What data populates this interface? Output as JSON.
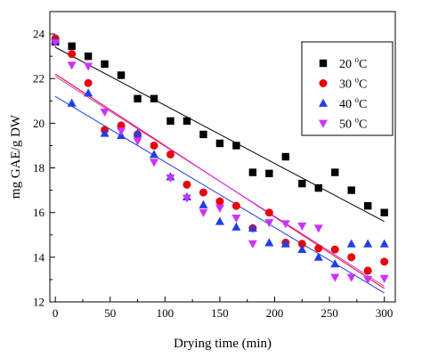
{
  "chart_data": {
    "type": "scatter",
    "xlabel": "Drying time (min)",
    "ylabel": "mg GAE/g DW",
    "xlim": [
      -5,
      310
    ],
    "ylim": [
      12,
      25
    ],
    "xticks": [
      0,
      50,
      100,
      150,
      200,
      250,
      300
    ],
    "yticks": [
      12,
      14,
      16,
      18,
      20,
      22,
      24
    ],
    "grid": false,
    "legend_position": "top-right",
    "series": [
      {
        "name": "20 °C",
        "label_value": "20 ",
        "label_unit": "o",
        "label_suffix": "C",
        "color": "#000000",
        "marker": "square",
        "points": [
          [
            0,
            23.65
          ],
          [
            15,
            23.45
          ],
          [
            30,
            23.0
          ],
          [
            45,
            22.65
          ],
          [
            60,
            22.15
          ],
          [
            75,
            21.1
          ],
          [
            90,
            21.1
          ],
          [
            105,
            20.1
          ],
          [
            120,
            20.1
          ],
          [
            135,
            19.5
          ],
          [
            150,
            19.1
          ],
          [
            165,
            19.0
          ],
          [
            180,
            17.8
          ],
          [
            195,
            17.75
          ],
          [
            210,
            18.5
          ],
          [
            225,
            17.3
          ],
          [
            240,
            17.1
          ],
          [
            255,
            17.8
          ],
          [
            270,
            17.0
          ],
          [
            285,
            16.3
          ],
          [
            300,
            16.0
          ]
        ],
        "fit": [
          [
            0,
            23.4
          ],
          [
            300,
            15.6
          ]
        ]
      },
      {
        "name": "30 °C",
        "label_value": "30 ",
        "label_unit": "o",
        "label_suffix": "C",
        "color": "#e8000b",
        "marker": "circle",
        "points": [
          [
            0,
            23.8
          ],
          [
            15,
            23.1
          ],
          [
            30,
            21.8
          ],
          [
            45,
            19.7
          ],
          [
            60,
            19.9
          ],
          [
            75,
            19.5
          ],
          [
            90,
            19.0
          ],
          [
            105,
            18.6
          ],
          [
            120,
            17.25
          ],
          [
            135,
            16.9
          ],
          [
            150,
            16.5
          ],
          [
            165,
            16.3
          ],
          [
            180,
            15.3
          ],
          [
            195,
            16.0
          ],
          [
            210,
            14.65
          ],
          [
            225,
            14.6
          ],
          [
            240,
            14.4
          ],
          [
            255,
            14.35
          ],
          [
            270,
            14.0
          ],
          [
            285,
            13.4
          ],
          [
            300,
            13.8
          ]
        ],
        "fit": [
          [
            0,
            22.2
          ],
          [
            300,
            12.6
          ]
        ]
      },
      {
        "name": "40 °C",
        "label_value": "40 ",
        "label_unit": "o",
        "label_suffix": "C",
        "color": "#1f3fe6",
        "marker": "triangle-up",
        "points": [
          [
            0,
            23.7
          ],
          [
            15,
            20.9
          ],
          [
            30,
            21.35
          ],
          [
            45,
            19.55
          ],
          [
            60,
            19.45
          ],
          [
            75,
            19.55
          ],
          [
            90,
            18.6
          ],
          [
            105,
            17.6
          ],
          [
            120,
            16.7
          ],
          [
            135,
            16.35
          ],
          [
            150,
            15.6
          ],
          [
            165,
            15.35
          ],
          [
            180,
            15.3
          ],
          [
            195,
            14.65
          ],
          [
            210,
            14.6
          ],
          [
            225,
            14.35
          ],
          [
            240,
            14.0
          ],
          [
            255,
            13.7
          ],
          [
            270,
            14.6
          ],
          [
            285,
            14.6
          ],
          [
            300,
            14.6
          ]
        ],
        "fit": [
          [
            0,
            21.2
          ],
          [
            300,
            12.4
          ]
        ]
      },
      {
        "name": "50 °C",
        "label_value": "50 ",
        "label_unit": "o",
        "label_suffix": "C",
        "color": "#cc33ff",
        "marker": "triangle-down",
        "points": [
          [
            0,
            23.6
          ],
          [
            15,
            22.6
          ],
          [
            30,
            22.55
          ],
          [
            45,
            20.5
          ],
          [
            60,
            19.65
          ],
          [
            75,
            19.2
          ],
          [
            90,
            18.25
          ],
          [
            105,
            17.55
          ],
          [
            120,
            16.65
          ],
          [
            135,
            16.0
          ],
          [
            150,
            16.2
          ],
          [
            165,
            15.75
          ],
          [
            180,
            14.6
          ],
          [
            195,
            15.55
          ],
          [
            210,
            15.5
          ],
          [
            225,
            15.4
          ],
          [
            240,
            15.3
          ],
          [
            255,
            13.1
          ],
          [
            270,
            13.1
          ],
          [
            285,
            13.0
          ],
          [
            300,
            13.05
          ]
        ],
        "fit": [
          [
            0,
            22.1
          ],
          [
            300,
            12.7
          ]
        ]
      }
    ]
  }
}
